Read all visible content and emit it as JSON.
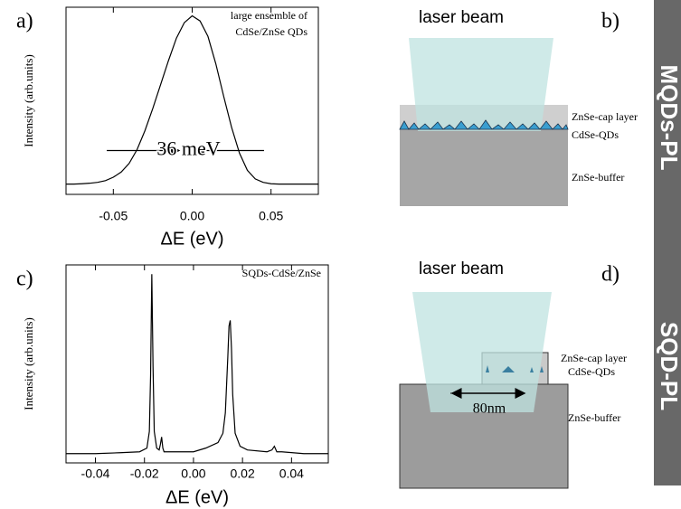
{
  "chart_data": [
    {
      "type": "line",
      "label": "a)",
      "xlabel": "ΔE (eV)",
      "ylabel": "Intensity (arb.units)",
      "annotations": [
        "large ensemble of",
        "CdSe/ZnSe QDs"
      ],
      "width_label": "36 meV",
      "x": [
        -0.08,
        -0.075,
        -0.07,
        -0.065,
        -0.06,
        -0.055,
        -0.05,
        -0.045,
        -0.04,
        -0.035,
        -0.03,
        -0.025,
        -0.02,
        -0.015,
        -0.01,
        -0.005,
        0,
        0.005,
        0.01,
        0.015,
        0.02,
        0.025,
        0.03,
        0.035,
        0.04,
        0.045,
        0.05,
        0.055,
        0.06,
        0.065,
        0.07,
        0.075,
        0.08
      ],
      "values": [
        0.02,
        0.02,
        0.022,
        0.025,
        0.03,
        0.04,
        0.06,
        0.09,
        0.14,
        0.22,
        0.33,
        0.46,
        0.6,
        0.74,
        0.87,
        0.96,
        1.0,
        0.97,
        0.88,
        0.72,
        0.53,
        0.35,
        0.2,
        0.1,
        0.05,
        0.03,
        0.022,
        0.02,
        0.02,
        0.02,
        0.02,
        0.02,
        0.02
      ],
      "color": "#000000",
      "xlim": [
        -0.08,
        0.08
      ],
      "ylim": [
        -0.04,
        1.05
      ],
      "xticks": [
        -0.05,
        {
          "value": 0,
          "label": "0.00"
        },
        0.05
      ]
    },
    {
      "type": "line",
      "label": "c)",
      "xlabel": "ΔE (eV)",
      "ylabel": "Intensity (arb.units)",
      "annotations": [
        "SQDs-CdSe/ZnSe"
      ],
      "x": [
        -0.052,
        -0.04,
        -0.03,
        -0.022,
        -0.019,
        -0.018,
        -0.0175,
        -0.017,
        -0.0165,
        -0.016,
        -0.015,
        -0.014,
        -0.0135,
        -0.013,
        -0.0125,
        -0.012,
        -0.01,
        0,
        0.005,
        0.01,
        0.012,
        0.013,
        0.014,
        0.0145,
        0.015,
        0.0155,
        0.016,
        0.017,
        0.019,
        0.022,
        0.03,
        0.032,
        0.033,
        0.034,
        0.036,
        0.045,
        0.055
      ],
      "values": [
        0.03,
        0.03,
        0.035,
        0.04,
        0.06,
        0.15,
        0.45,
        1.0,
        0.5,
        0.15,
        0.06,
        0.05,
        0.08,
        0.12,
        0.06,
        0.04,
        0.04,
        0.04,
        0.06,
        0.09,
        0.14,
        0.25,
        0.55,
        0.72,
        0.75,
        0.6,
        0.35,
        0.14,
        0.07,
        0.05,
        0.04,
        0.05,
        0.07,
        0.04,
        0.04,
        0.03,
        0.03
      ],
      "color": "#000000",
      "xlim": [
        -0.052,
        0.055
      ],
      "ylim": [
        -0.02,
        1.05
      ],
      "xticks": [
        -0.04,
        -0.02,
        {
          "value": 0,
          "label": "0.00"
        },
        0.02,
        0.04
      ]
    }
  ],
  "diagrams": {
    "b": {
      "label": "b)",
      "beam": "laser beam",
      "cap": "ZnSe-cap layer",
      "dots": "CdSe-QDs",
      "buffer": "ZnSe-buffer"
    },
    "d": {
      "label": "d)",
      "beam": "laser beam",
      "cap": "ZnSe-cap layer",
      "dots": "CdSe-QDs",
      "buffer": "ZnSe-buffer",
      "size": "80nm"
    }
  },
  "side_labels": [
    "MQDs-PL",
    "SQD-PL"
  ]
}
